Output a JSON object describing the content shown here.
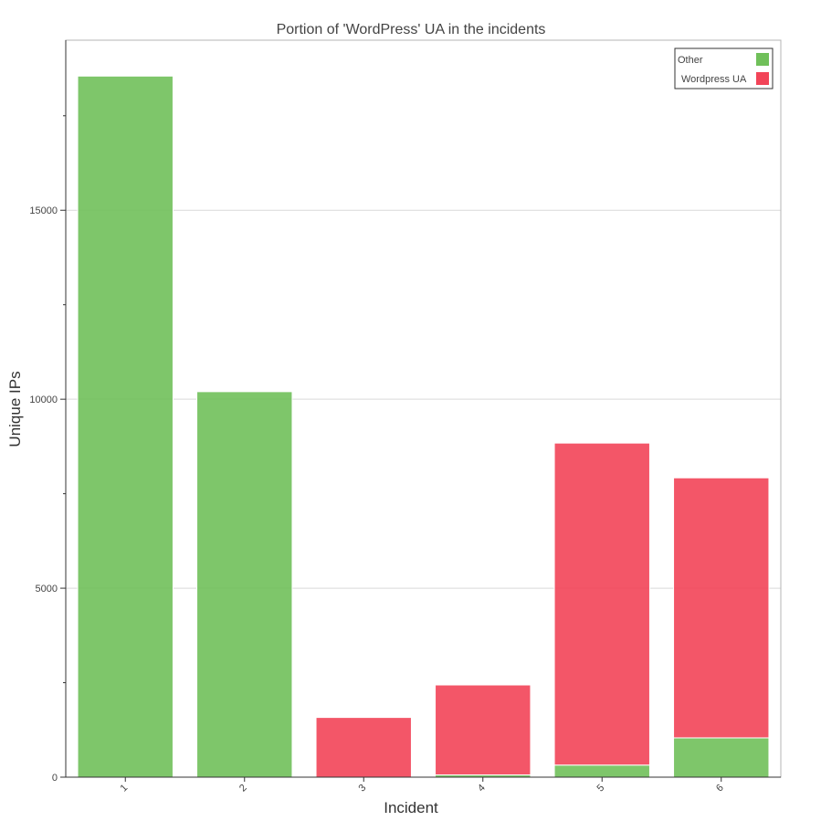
{
  "chart_data": {
    "type": "bar",
    "stacked": true,
    "title": "Portion of 'WordPress' UA in the incidents",
    "xlabel": "Incident",
    "ylabel": "Unique IPs",
    "categories": [
      "1",
      "2",
      "3",
      "4",
      "5",
      "6"
    ],
    "series": [
      {
        "name": "Other",
        "color": "#70c05a",
        "values": [
          18550,
          10200,
          0,
          60,
          320,
          1040
        ]
      },
      {
        "name": "Wordpress UA",
        "color": "#f24458",
        "values": [
          0,
          0,
          1580,
          2380,
          8520,
          6880
        ]
      }
    ],
    "yticks": [
      0,
      5000,
      10000,
      15000
    ],
    "ylim": [
      0,
      19500
    ],
    "grid": "horizontal",
    "legend_position": "top-right"
  }
}
